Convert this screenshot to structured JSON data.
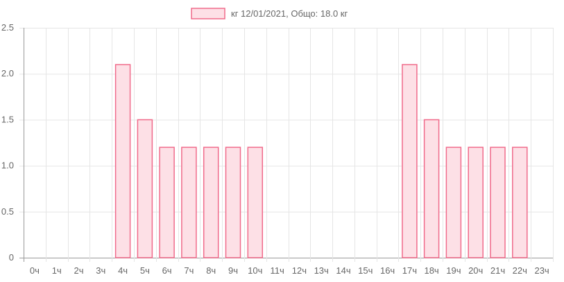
{
  "chart_data": {
    "type": "bar",
    "legend": {
      "label": "кг 12/01/2021, Общо: 18.0 кг",
      "position": "top-center"
    },
    "categories": [
      "0ч",
      "1ч",
      "2ч",
      "3ч",
      "4ч",
      "5ч",
      "6ч",
      "7ч",
      "8ч",
      "9ч",
      "10ч",
      "11ч",
      "12ч",
      "13ч",
      "14ч",
      "15ч",
      "16ч",
      "17ч",
      "18ч",
      "19ч",
      "20ч",
      "21ч",
      "22ч",
      "23ч"
    ],
    "series": [
      {
        "name": "кг 12/01/2021, Общо: 18.0 кг",
        "values": [
          0,
          0,
          0,
          0,
          2.1,
          1.5,
          1.2,
          1.2,
          1.2,
          1.2,
          1.2,
          0,
          0,
          0,
          0,
          0,
          0,
          2.1,
          1.5,
          1.2,
          1.2,
          1.2,
          1.2,
          0
        ],
        "fill_color": "#fde0e6",
        "border_color": "#f06a8a"
      }
    ],
    "y_ticks": [
      "0",
      "0.5",
      "1.0",
      "1.5",
      "2.0",
      "2.5"
    ],
    "ylim": [
      0,
      2.5
    ],
    "grid": true,
    "grid_color": "#e5e5e5",
    "axis_color": "#999999"
  }
}
